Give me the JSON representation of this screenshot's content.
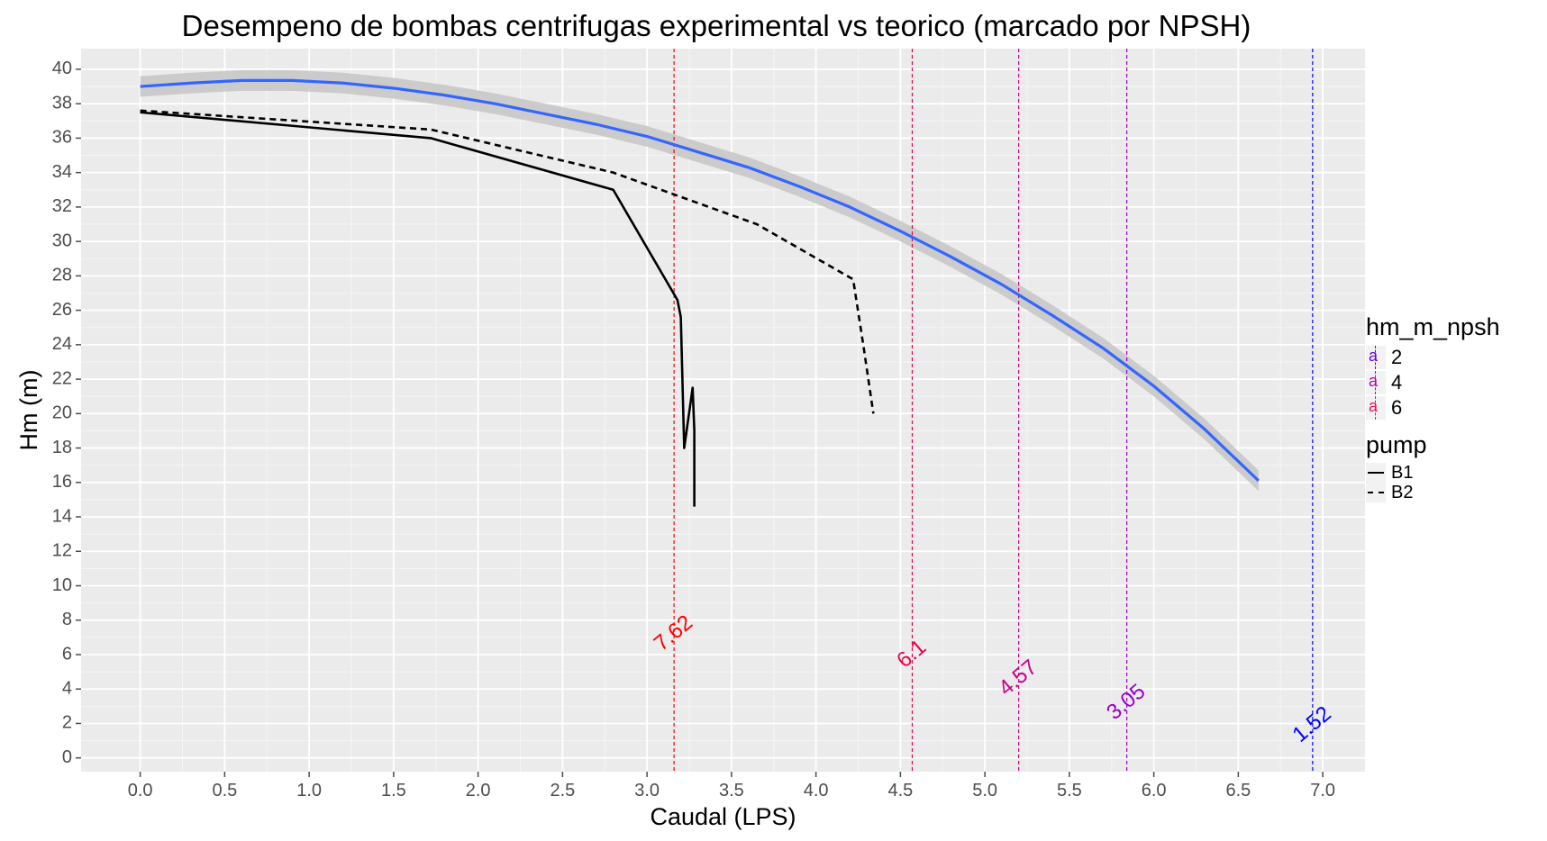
{
  "chart_data": {
    "type": "line",
    "title": "Desempeno de bombas centrifugas experimental vs teorico (marcado por NPSH)",
    "xlabel": "Caudal (LPS)",
    "ylabel": "Hm (m)",
    "xlim": [
      -0.35,
      7.25
    ],
    "ylim": [
      -0.8,
      41.2
    ],
    "x_ticks": [
      "0.0",
      "0.5",
      "1.0",
      "1.5",
      "2.0",
      "2.5",
      "3.0",
      "3.5",
      "4.0",
      "4.5",
      "5.0",
      "5.5",
      "6.0",
      "6.5",
      "7.0"
    ],
    "x_tick_values": [
      0,
      0.5,
      1,
      1.5,
      2,
      2.5,
      3,
      3.5,
      4,
      4.5,
      5,
      5.5,
      6,
      6.5,
      7
    ],
    "y_ticks": [
      "0",
      "2",
      "4",
      "6",
      "8",
      "10",
      "12",
      "14",
      "16",
      "18",
      "20",
      "22",
      "24",
      "26",
      "28",
      "30",
      "32",
      "34",
      "36",
      "38",
      "40"
    ],
    "y_tick_values": [
      0,
      2,
      4,
      6,
      8,
      10,
      12,
      14,
      16,
      18,
      20,
      22,
      24,
      26,
      28,
      30,
      32,
      34,
      36,
      38,
      40
    ],
    "grid": true,
    "legend_position": "right",
    "series": [
      {
        "name": "B1",
        "style": "solid",
        "color": "#000000",
        "x": [
          0.0,
          1.72,
          2.8,
          3.18,
          3.2,
          3.22,
          3.27,
          3.28,
          3.28
        ],
        "y": [
          37.5,
          36.0,
          33.0,
          26.6,
          25.6,
          18.0,
          21.5,
          19.0,
          14.6
        ]
      },
      {
        "name": "B2",
        "style": "dashed",
        "color": "#000000",
        "x": [
          0.0,
          1.72,
          2.8,
          3.65,
          4.22,
          4.28,
          4.34
        ],
        "y": [
          37.6,
          36.5,
          34.0,
          31.0,
          27.8,
          24.0,
          20.0
        ]
      },
      {
        "name": "",
        "style": "smooth",
        "color": "#3366ff",
        "x": [
          0.0,
          0.3,
          0.6,
          0.9,
          1.2,
          1.5,
          1.8,
          2.1,
          2.4,
          2.7,
          3.0,
          3.3,
          3.6,
          3.9,
          4.2,
          4.5,
          4.8,
          5.1,
          5.4,
          5.7,
          6.0,
          6.3,
          6.62
        ],
        "y": [
          39.0,
          39.2,
          39.35,
          39.35,
          39.2,
          38.9,
          38.5,
          38.0,
          37.4,
          36.8,
          36.1,
          35.2,
          34.3,
          33.2,
          32.0,
          30.6,
          29.1,
          27.5,
          25.7,
          23.8,
          21.6,
          19.1,
          16.1
        ],
        "band_width": 0.6
      }
    ],
    "vlines": [
      {
        "x": 3.16,
        "label": "7.62",
        "color": "#ff0000",
        "label_y": 7.2,
        "label_x": 3.16
      },
      {
        "x": 4.57,
        "label": "6.1",
        "color": "#ee0044",
        "label_y": 6.0,
        "label_x": 4.57
      },
      {
        "x": 5.2,
        "label": "4.57",
        "color": "#cc0088",
        "label_y": 4.6,
        "label_x": 5.2
      },
      {
        "x": 5.84,
        "label": "3.05",
        "color": "#9900cc",
        "label_y": 3.2,
        "label_x": 5.84
      },
      {
        "x": 6.94,
        "label": "1.52",
        "color": "#0000ff",
        "label_y": 1.9,
        "label_x": 6.94
      }
    ],
    "legend": {
      "npsh_title": "hm_m_npsh",
      "npsh_items": [
        {
          "label": "2",
          "color": "#6a00e6"
        },
        {
          "label": "4",
          "color": "#bb00aa"
        },
        {
          "label": "6",
          "color": "#ee1155"
        }
      ],
      "pump_title": "pump",
      "pump_items": [
        {
          "label": "B1",
          "dash": "solid"
        },
        {
          "label": "B2",
          "dash": "dashed"
        }
      ]
    }
  }
}
